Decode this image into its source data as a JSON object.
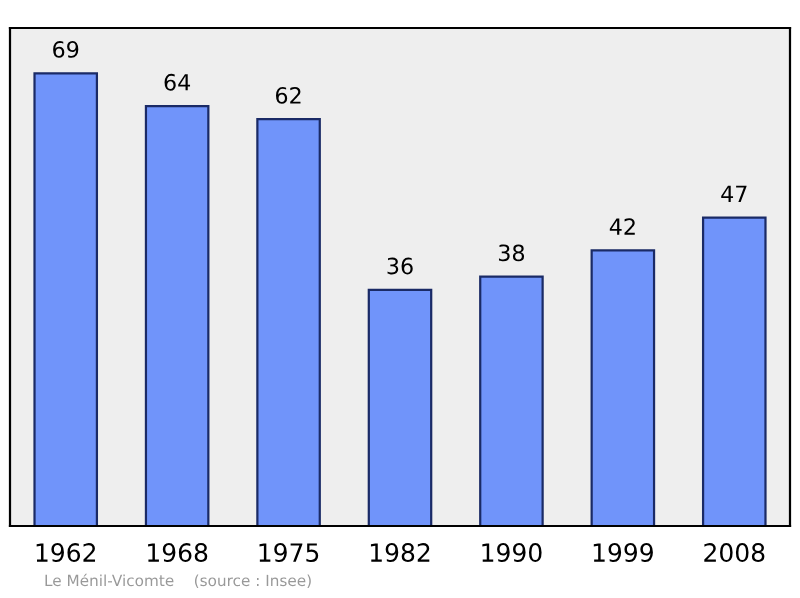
{
  "chart_data": {
    "type": "bar",
    "categories": [
      "1962",
      "1968",
      "1975",
      "1982",
      "1990",
      "1999",
      "2008"
    ],
    "values": [
      69,
      64,
      62,
      36,
      38,
      42,
      47
    ],
    "color": "#7094fa",
    "data_labels": true,
    "grid": false,
    "legend": false,
    "annotations": [
      "Le Ménil-Vicomte    (source : Insee)"
    ]
  }
}
